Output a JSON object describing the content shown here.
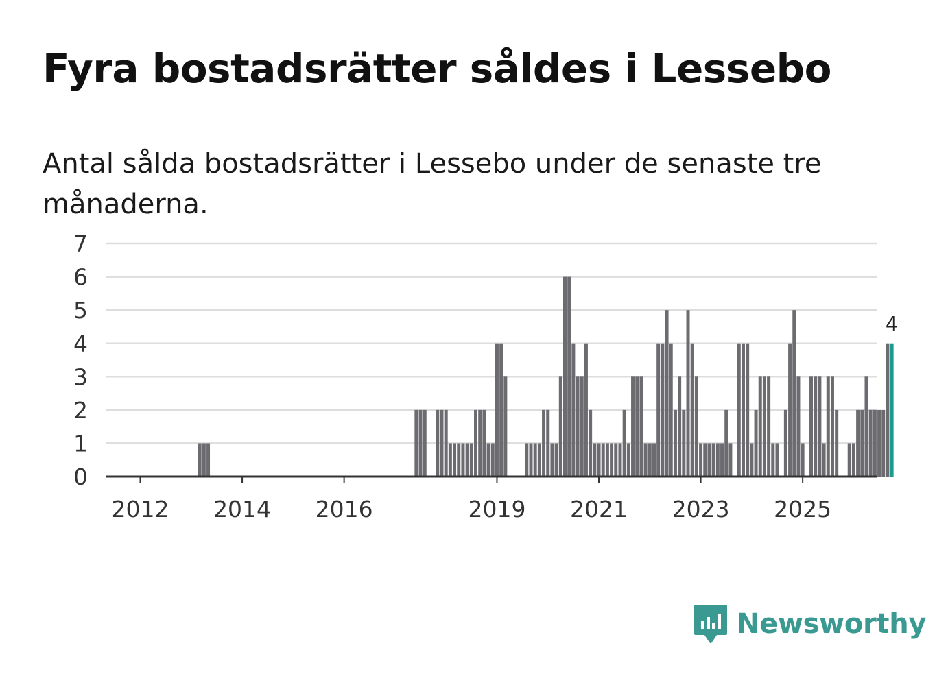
{
  "header": {
    "title": "Fyra bostadsrätter såldes i Lessebo",
    "subtitle": "Antal sålda bostadsrätter i Lessebo under de senaste tre månaderna."
  },
  "brand": {
    "name": "Newsworthy",
    "icon": "newsworthy-logo-icon",
    "color": "#3a9a92"
  },
  "colors": {
    "bar": "#6b6b70",
    "highlight": "#1a9b90",
    "grid": "#dddddd",
    "axis": "#333333"
  },
  "chart_data": {
    "type": "bar",
    "title": "Fyra bostadsrätter såldes i Lessebo",
    "subtitle": "Antal sålda bostadsrätter i Lessebo under de senaste tre månaderna.",
    "xlabel": "",
    "ylabel": "",
    "ylim": [
      0,
      7
    ],
    "yticks": [
      "0",
      "1",
      "2",
      "3",
      "4",
      "5",
      "6",
      "7"
    ],
    "xticks": [
      {
        "label": "2012",
        "index": 0
      },
      {
        "label": "2014",
        "index": 24
      },
      {
        "label": "2016",
        "index": 48
      },
      {
        "label": "2019",
        "index": 84
      },
      {
        "label": "2021",
        "index": 108
      },
      {
        "label": "2023",
        "index": 132
      },
      {
        "label": "2025",
        "index": 156
      }
    ],
    "first_period": "2012-01",
    "highlight_label": "4",
    "values": [
      0,
      0,
      0,
      0,
      0,
      0,
      0,
      0,
      0,
      0,
      0,
      0,
      0,
      0,
      1,
      1,
      1,
      0,
      0,
      0,
      0,
      0,
      0,
      0,
      0,
      0,
      0,
      0,
      0,
      0,
      0,
      0,
      0,
      0,
      0,
      0,
      0,
      0,
      0,
      0,
      0,
      0,
      0,
      0,
      0,
      0,
      0,
      0,
      0,
      0,
      0,
      0,
      0,
      0,
      0,
      0,
      0,
      0,
      0,
      0,
      0,
      0,
      0,
      0,
      0,
      2,
      2,
      2,
      0,
      0,
      2,
      2,
      2,
      1,
      1,
      1,
      1,
      1,
      1,
      2,
      2,
      2,
      1,
      1,
      4,
      4,
      3,
      0,
      0,
      0,
      0,
      1,
      1,
      1,
      1,
      2,
      2,
      1,
      1,
      3,
      6,
      6,
      4,
      3,
      3,
      4,
      2,
      1,
      1,
      1,
      1,
      1,
      1,
      1,
      2,
      1,
      3,
      3,
      3,
      1,
      1,
      1,
      4,
      4,
      5,
      4,
      2,
      3,
      2,
      5,
      4,
      3,
      1,
      1,
      1,
      1,
      1,
      1,
      2,
      1,
      0,
      4,
      4,
      4,
      1,
      2,
      3,
      3,
      3,
      1,
      1,
      0,
      2,
      4,
      5,
      3,
      1,
      0,
      3,
      3,
      3,
      1,
      3,
      3,
      2,
      0,
      0,
      1,
      1,
      2,
      2,
      3,
      2,
      2,
      2,
      2,
      4,
      4
    ]
  }
}
